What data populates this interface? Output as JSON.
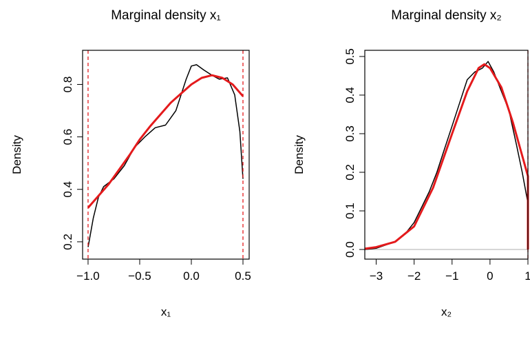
{
  "chart_data": [
    {
      "type": "line",
      "title": "Marginal density x₁",
      "xlabel": "x₁",
      "ylabel": "Density",
      "xlim": [
        -1.053,
        0.56
      ],
      "ylim": [
        0.134,
        0.93
      ],
      "xticks": [
        {
          "value": -1.0,
          "label": "−1.0"
        },
        {
          "value": -0.5,
          "label": "−0.5"
        },
        {
          "value": 0.0,
          "label": "0.0"
        },
        0.5
      ],
      "yticks": [
        0.2,
        0.4,
        0.6,
        0.8
      ],
      "vlines": [
        {
          "value": -1.0,
          "color": "#e41a1c"
        },
        {
          "value": 0.5,
          "color": "#e41a1c"
        }
      ],
      "series": [
        {
          "color": "#000000",
          "x": [
            -1.0,
            -0.95,
            -0.9,
            -0.85,
            -0.75,
            -0.65,
            -0.55,
            -0.45,
            -0.35,
            -0.25,
            -0.15,
            -0.05,
            0.0,
            0.05,
            0.12,
            0.2,
            0.27,
            0.35,
            0.42,
            0.47,
            0.5
          ],
          "values": [
            0.18,
            0.29,
            0.37,
            0.41,
            0.44,
            0.49,
            0.56,
            0.6,
            0.635,
            0.645,
            0.7,
            0.82,
            0.87,
            0.875,
            0.855,
            0.835,
            0.82,
            0.825,
            0.76,
            0.62,
            0.44
          ]
        },
        {
          "color": "#e41a1c",
          "x": [
            -1.0,
            -0.8,
            -0.6,
            -0.5,
            -0.4,
            -0.2,
            0.0,
            0.1,
            0.2,
            0.3,
            0.4,
            0.5
          ],
          "values": [
            0.33,
            0.42,
            0.53,
            0.59,
            0.64,
            0.73,
            0.8,
            0.825,
            0.835,
            0.825,
            0.8,
            0.755
          ]
        }
      ]
    },
    {
      "type": "line",
      "title": "Marginal density x₂",
      "xlabel": "x₂",
      "ylabel": "Density",
      "xlim": [
        -3.3,
        1.0
      ],
      "ylim": [
        -0.025,
        0.516
      ],
      "xticks": [
        {
          "value": -3,
          "label": "−3"
        },
        {
          "value": -2,
          "label": "−2"
        },
        {
          "value": -1,
          "label": "−1"
        },
        0,
        1
      ],
      "yticks": [
        {
          "value": 0.0,
          "label": "0.0"
        },
        0.1,
        0.2,
        0.3,
        0.4,
        0.5
      ],
      "vlines": [
        {
          "value": 1.0,
          "color": "#e41a1c"
        }
      ],
      "hlines": [
        {
          "value": 0,
          "color": "#bebebe"
        }
      ],
      "series": [
        {
          "color": "#000000",
          "x": [
            -3.3,
            -3,
            -2.5,
            -2.2,
            -2,
            -1.8,
            -1.6,
            -1.4,
            -1.2,
            -1,
            -0.8,
            -0.6,
            -0.4,
            -0.2,
            -0.05,
            0.1,
            0.3,
            0.5,
            0.7,
            0.85,
            1.0
          ],
          "values": [
            0,
            0.003,
            0.02,
            0.045,
            0.07,
            0.11,
            0.15,
            0.2,
            0.26,
            0.32,
            0.38,
            0.44,
            0.46,
            0.47,
            0.487,
            0.46,
            0.41,
            0.36,
            0.27,
            0.2,
            0.12
          ]
        },
        {
          "color": "#e41a1c",
          "x": [
            -3.3,
            -3,
            -2.5,
            -2,
            -1.5,
            -1,
            -0.6,
            -0.3,
            -0.15,
            0,
            0.3,
            0.6,
            0.8,
            1.0,
            1.0
          ],
          "values": [
            0.002,
            0.006,
            0.02,
            0.06,
            0.16,
            0.3,
            0.41,
            0.47,
            0.48,
            0.47,
            0.42,
            0.33,
            0.26,
            0.19,
            0
          ]
        }
      ]
    }
  ]
}
